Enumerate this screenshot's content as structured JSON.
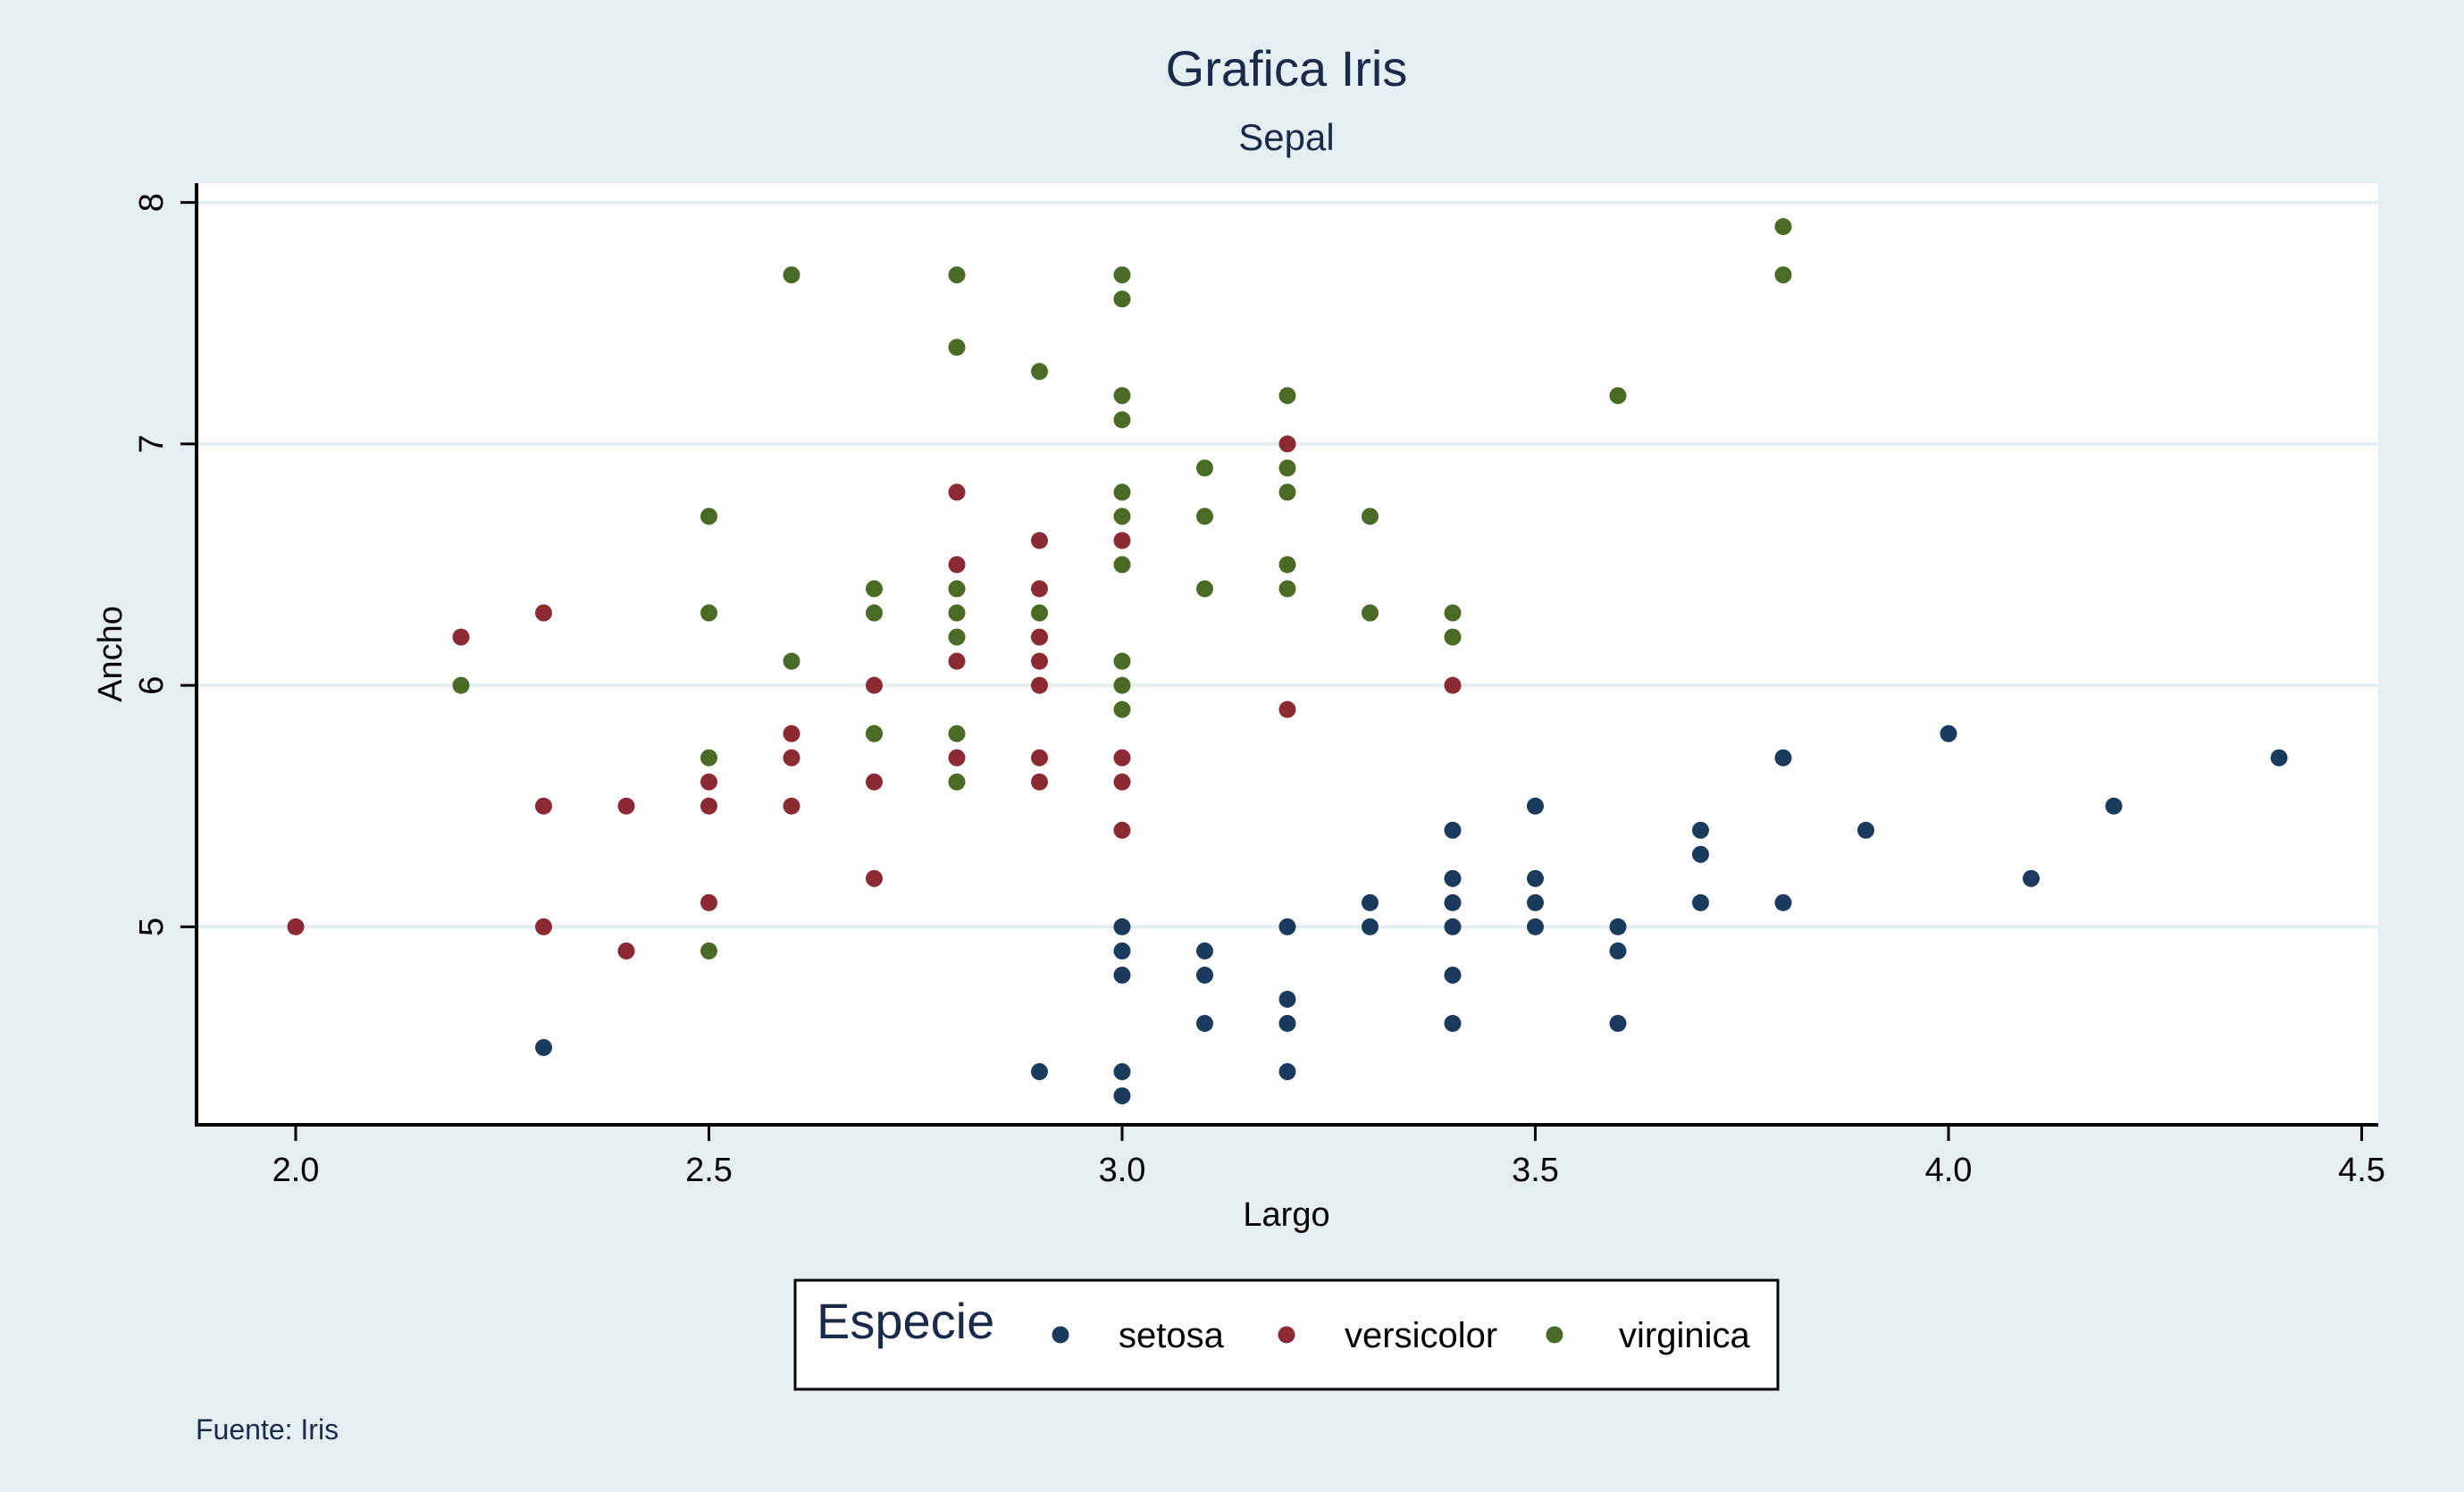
{
  "chart_data": {
    "type": "scatter",
    "title": "Grafica Iris",
    "subtitle": "Sepal",
    "xlabel": "Largo",
    "ylabel": "Ancho",
    "xlim": [
      1.88,
      4.52
    ],
    "ylim": [
      4.18,
      8.08
    ],
    "xticks": [
      2.0,
      2.5,
      3.0,
      3.5,
      4.0,
      4.5
    ],
    "xtick_labels": [
      "2.0",
      "2.5",
      "3.0",
      "3.5",
      "4.0",
      "4.5"
    ],
    "yticks": [
      5,
      6,
      7,
      8
    ],
    "ytick_labels": [
      "5",
      "6",
      "7",
      "8"
    ],
    "grid": "horizontal",
    "legend_title": "Especie",
    "legend_position": "bottom",
    "note": "Fuente: Iris",
    "series": [
      {
        "name": "setosa",
        "color": "#1a3a5e",
        "points": [
          [
            2.3,
            4.5
          ],
          [
            2.9,
            4.4
          ],
          [
            3.0,
            5.0
          ],
          [
            3.0,
            4.9
          ],
          [
            3.0,
            4.8
          ],
          [
            3.0,
            4.4
          ],
          [
            3.0,
            4.3
          ],
          [
            3.1,
            4.9
          ],
          [
            3.1,
            4.8
          ],
          [
            3.1,
            4.6
          ],
          [
            3.2,
            5.0
          ],
          [
            3.2,
            4.7
          ],
          [
            3.2,
            4.6
          ],
          [
            3.2,
            4.4
          ],
          [
            3.3,
            5.1
          ],
          [
            3.3,
            5.0
          ],
          [
            3.4,
            5.4
          ],
          [
            3.4,
            5.2
          ],
          [
            3.4,
            5.1
          ],
          [
            3.4,
            5.0
          ],
          [
            3.4,
            4.8
          ],
          [
            3.4,
            4.6
          ],
          [
            3.5,
            5.5
          ],
          [
            3.5,
            5.2
          ],
          [
            3.5,
            5.1
          ],
          [
            3.5,
            5.0
          ],
          [
            3.6,
            5.0
          ],
          [
            3.6,
            4.9
          ],
          [
            3.6,
            4.6
          ],
          [
            3.7,
            5.4
          ],
          [
            3.7,
            5.3
          ],
          [
            3.7,
            5.1
          ],
          [
            3.8,
            5.7
          ],
          [
            3.8,
            5.1
          ],
          [
            3.9,
            5.4
          ],
          [
            4.0,
            5.8
          ],
          [
            4.1,
            5.2
          ],
          [
            4.2,
            5.5
          ],
          [
            4.4,
            5.7
          ]
        ]
      },
      {
        "name": "versicolor",
        "color": "#8b2a33",
        "points": [
          [
            2.0,
            5.0
          ],
          [
            2.2,
            6.2
          ],
          [
            2.3,
            6.3
          ],
          [
            2.3,
            5.5
          ],
          [
            2.3,
            5.0
          ],
          [
            2.4,
            5.5
          ],
          [
            2.4,
            4.9
          ],
          [
            2.5,
            5.6
          ],
          [
            2.5,
            5.5
          ],
          [
            2.5,
            5.1
          ],
          [
            2.6,
            5.8
          ],
          [
            2.6,
            5.7
          ],
          [
            2.6,
            5.5
          ],
          [
            2.7,
            6.0
          ],
          [
            2.7,
            5.8
          ],
          [
            2.7,
            5.6
          ],
          [
            2.7,
            5.2
          ],
          [
            2.8,
            6.8
          ],
          [
            2.8,
            6.5
          ],
          [
            2.8,
            6.1
          ],
          [
            2.8,
            5.7
          ],
          [
            2.9,
            6.6
          ],
          [
            2.9,
            6.4
          ],
          [
            2.9,
            6.2
          ],
          [
            2.9,
            6.1
          ],
          [
            2.9,
            6.0
          ],
          [
            2.9,
            5.7
          ],
          [
            2.9,
            5.6
          ],
          [
            3.0,
            6.6
          ],
          [
            3.0,
            5.7
          ],
          [
            3.0,
            5.6
          ],
          [
            3.0,
            5.4
          ],
          [
            3.2,
            7.0
          ],
          [
            3.2,
            5.9
          ],
          [
            3.4,
            6.0
          ]
        ]
      },
      {
        "name": "virginica",
        "color": "#4a6b25",
        "points": [
          [
            2.2,
            6.0
          ],
          [
            2.5,
            6.7
          ],
          [
            2.5,
            6.3
          ],
          [
            2.5,
            5.7
          ],
          [
            2.5,
            4.9
          ],
          [
            2.6,
            7.7
          ],
          [
            2.6,
            6.1
          ],
          [
            2.7,
            6.4
          ],
          [
            2.7,
            6.3
          ],
          [
            2.7,
            5.8
          ],
          [
            2.8,
            7.7
          ],
          [
            2.8,
            7.4
          ],
          [
            2.8,
            6.4
          ],
          [
            2.8,
            6.3
          ],
          [
            2.8,
            6.2
          ],
          [
            2.8,
            5.8
          ],
          [
            2.8,
            5.6
          ],
          [
            2.9,
            7.3
          ],
          [
            2.9,
            6.3
          ],
          [
            3.0,
            7.7
          ],
          [
            3.0,
            7.6
          ],
          [
            3.0,
            7.2
          ],
          [
            3.0,
            7.1
          ],
          [
            3.0,
            6.8
          ],
          [
            3.0,
            6.7
          ],
          [
            3.0,
            6.5
          ],
          [
            3.0,
            6.1
          ],
          [
            3.0,
            6.0
          ],
          [
            3.0,
            5.9
          ],
          [
            3.1,
            6.9
          ],
          [
            3.1,
            6.7
          ],
          [
            3.1,
            6.4
          ],
          [
            3.2,
            7.2
          ],
          [
            3.2,
            6.9
          ],
          [
            3.2,
            6.8
          ],
          [
            3.2,
            6.5
          ],
          [
            3.2,
            6.4
          ],
          [
            3.3,
            6.7
          ],
          [
            3.3,
            6.3
          ],
          [
            3.4,
            6.3
          ],
          [
            3.4,
            6.2
          ],
          [
            3.6,
            7.2
          ],
          [
            3.8,
            7.9
          ],
          [
            3.8,
            7.7
          ]
        ]
      }
    ]
  }
}
